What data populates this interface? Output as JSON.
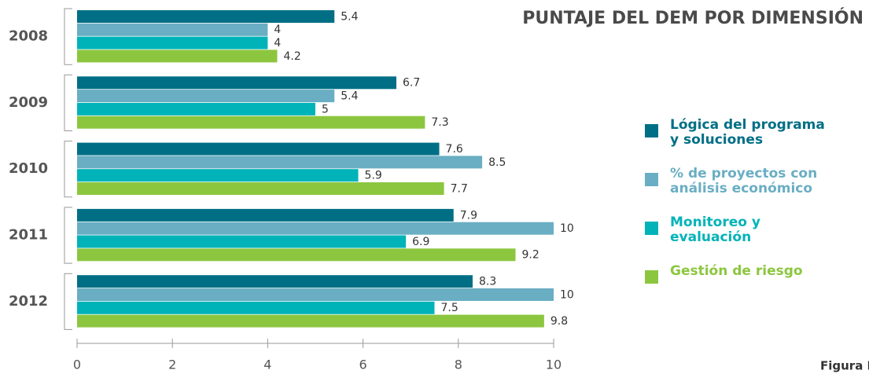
{
  "chart_data": {
    "type": "bar",
    "orientation": "horizontal",
    "title": "PUNTAJE DEL DEM POR DIMENSIÓN",
    "categories": [
      "2008",
      "2009",
      "2010",
      "2011",
      "2012"
    ],
    "series": [
      {
        "name": "Lógica del programa y soluciones",
        "color": "#006f85",
        "values": [
          5.4,
          6.7,
          7.6,
          7.9,
          8.3
        ]
      },
      {
        "name": "% de proyectos con análisis económico",
        "color": "#6aaec3",
        "values": [
          4,
          5.4,
          8.5,
          10,
          10
        ]
      },
      {
        "name": "Monitoreo y evaluación",
        "color": "#00b3b8",
        "values": [
          4,
          5,
          5.9,
          6.9,
          7.5
        ]
      },
      {
        "name": "Gestión de riesgo",
        "color": "#8cc63f",
        "values": [
          4.2,
          7.3,
          7.7,
          9.2,
          9.8
        ]
      }
    ],
    "xlim": [
      0,
      10
    ],
    "xticks": [
      0,
      2,
      4,
      6,
      8,
      10
    ],
    "legend": "right",
    "footer": "Figura I"
  }
}
